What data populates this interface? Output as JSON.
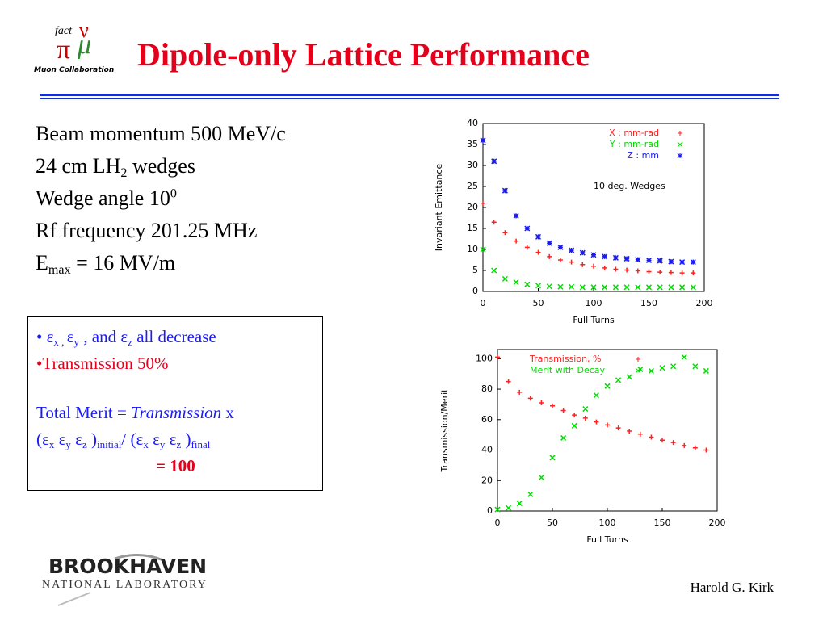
{
  "header": {
    "title": "Dipole-only Lattice Performance",
    "logo": {
      "top": "fact",
      "bottom": "Muon Collaboration"
    }
  },
  "params": [
    [
      {
        "text": "Beam momentum 500 MeV/c"
      }
    ],
    [
      {
        "text": "24 cm LH"
      },
      {
        "text": "2",
        "style": "sub"
      },
      {
        "text": " wedges"
      }
    ],
    [
      {
        "text": "Wedge angle 10"
      },
      {
        "text": "0",
        "style": "sup"
      }
    ],
    [
      {
        "text": "Rf frequency 201.25 MHz"
      }
    ],
    [
      {
        "text": "E"
      },
      {
        "text": "max",
        "style": "sub"
      },
      {
        "text": " = 16 MV/m"
      }
    ]
  ],
  "box": [
    {
      "color": "#1a1aff",
      "parts": [
        {
          "text": "• ε"
        },
        {
          "text": "x , ",
          "style": "sub"
        },
        {
          "text": "ε"
        },
        {
          "text": "y",
          "style": "sub"
        },
        {
          "text": " , and ε"
        },
        {
          "text": "z",
          "style": "sub"
        },
        {
          "text": " all decrease"
        }
      ]
    },
    {
      "color": "#e4001b",
      "parts": [
        {
          "text": "•Transmission 50%"
        }
      ]
    },
    {
      "color": "#1a1aff",
      "parts": [
        {
          "text": "Total Merit = "
        },
        {
          "text": "Transmission",
          "style": "italic"
        },
        {
          "text": " x"
        }
      ]
    },
    {
      "color": "#1a1aff",
      "parts": [
        {
          "text": "(ε"
        },
        {
          "text": "x",
          "style": "sub"
        },
        {
          "text": " ε"
        },
        {
          "text": "y",
          "style": "sub"
        },
        {
          "text": " ε"
        },
        {
          "text": "z",
          "style": "sub"
        },
        {
          "text": " )"
        },
        {
          "text": "initial",
          "style": "sub"
        },
        {
          "text": "/ (ε"
        },
        {
          "text": "x",
          "style": "sub"
        },
        {
          "text": " ε"
        },
        {
          "text": "y",
          "style": "sub"
        },
        {
          "text": " ε"
        },
        {
          "text": "z",
          "style": "sub"
        },
        {
          "text": " )"
        },
        {
          "text": "final",
          "style": "sub"
        }
      ]
    },
    {
      "color": "#e4001b",
      "parts": [
        {
          "text": "= 100",
          "style": "bold"
        }
      ]
    }
  ],
  "chart_data": [
    {
      "type": "scatter",
      "x_label": "Full Turns",
      "y_label": "Invariant Emittance",
      "annotation": "10 deg. Wedges",
      "legend": "top-right",
      "x": [
        0,
        10,
        20,
        30,
        40,
        50,
        60,
        70,
        80,
        90,
        100,
        110,
        120,
        130,
        140,
        150,
        160,
        170,
        180,
        190
      ],
      "xlim": [
        0,
        200
      ],
      "xticks": [
        0,
        50,
        100,
        150,
        200
      ],
      "ylim": [
        0,
        40
      ],
      "yticks": [
        0,
        5,
        10,
        15,
        20,
        25,
        30,
        35,
        40
      ],
      "series": [
        {
          "name": "X : mm-rad",
          "color": "#ff2020",
          "marker": "plus",
          "values": [
            21,
            16.5,
            14,
            12,
            10.5,
            9.3,
            8.3,
            7.5,
            7,
            6.4,
            6,
            5.6,
            5.3,
            5.1,
            4.9,
            4.7,
            4.6,
            4.5,
            4.4,
            4.4
          ]
        },
        {
          "name": "Y : mm-rad",
          "color": "#00dd00",
          "marker": "cross",
          "values": [
            10,
            5,
            3,
            2.2,
            1.7,
            1.4,
            1.2,
            1.1,
            1.1,
            1,
            1,
            1,
            1,
            1,
            1,
            1,
            1,
            1,
            1,
            1
          ]
        },
        {
          "name": "Z : mm",
          "color": "#1a1aee",
          "marker": "star",
          "values": [
            36,
            31,
            24,
            18,
            15,
            13,
            11.5,
            10.5,
            9.8,
            9.2,
            8.7,
            8.3,
            8,
            7.8,
            7.6,
            7.4,
            7.3,
            7.1,
            7,
            7
          ]
        }
      ]
    },
    {
      "type": "scatter",
      "x_label": "Full Turns",
      "y_label": "Transmission/Merit",
      "legend": "top-left",
      "x": [
        0,
        10,
        20,
        30,
        40,
        50,
        60,
        70,
        80,
        90,
        100,
        110,
        120,
        130,
        140,
        150,
        160,
        170,
        180,
        190
      ],
      "xlim": [
        0,
        200
      ],
      "xticks": [
        0,
        50,
        100,
        150,
        200
      ],
      "ylim": [
        0,
        106
      ],
      "yticks": [
        0,
        20,
        40,
        60,
        80,
        100
      ],
      "series": [
        {
          "name": "Transmission, %",
          "color": "#ff2020",
          "marker": "plus",
          "values": [
            101,
            85,
            78,
            74,
            71,
            69,
            66,
            63,
            61,
            58.5,
            56.5,
            54.5,
            52.5,
            50.5,
            48.5,
            46.5,
            45,
            43,
            41.5,
            40
          ]
        },
        {
          "name": "Merit with Decay",
          "color": "#00dd00",
          "marker": "cross",
          "values": [
            1,
            2,
            5,
            11,
            22,
            35,
            48,
            56,
            67,
            76,
            82,
            86,
            88,
            93,
            92,
            94,
            95,
            101,
            95,
            92
          ]
        }
      ]
    }
  ],
  "footer": {
    "author": "Harold G. Kirk",
    "lab": "BROOKHAVEN",
    "lab_sub": "NATIONAL LABORATORY"
  }
}
